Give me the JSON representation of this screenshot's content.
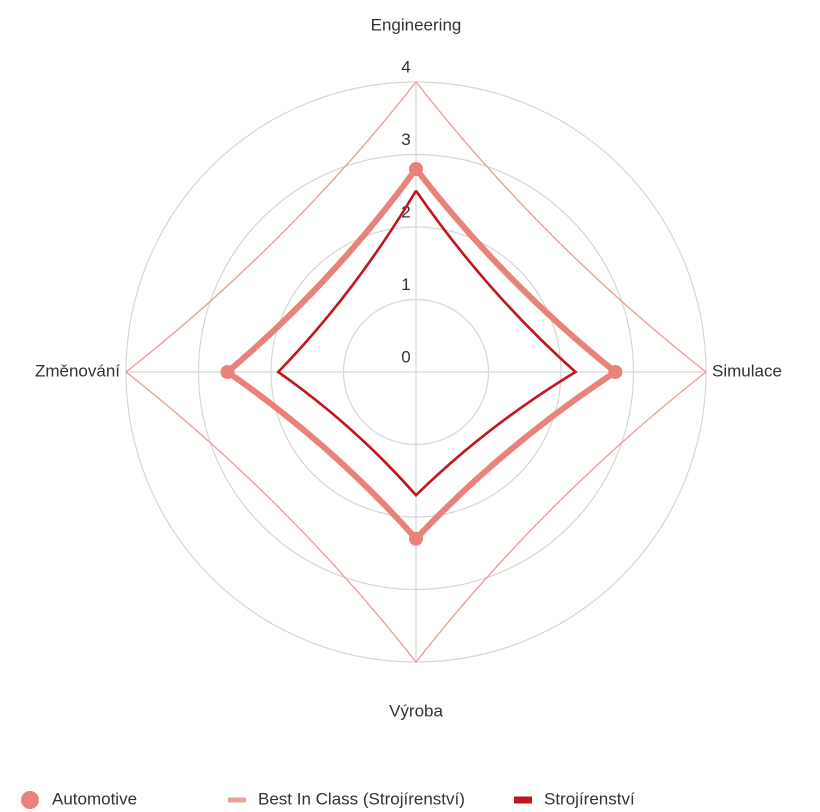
{
  "chart_data": {
    "type": "radar",
    "categories": [
      "Engineering",
      "Simulace",
      "Výroba",
      "Změnování"
    ],
    "series": [
      {
        "name": "Automotive",
        "color": "#e8827a",
        "values": [
          2.8,
          2.75,
          2.3,
          2.6
        ]
      },
      {
        "name": "Best In Class (Strojírenství)",
        "color": "#e5a596",
        "values": [
          4,
          4,
          4,
          4
        ]
      },
      {
        "name": "Strojírenství",
        "color": "#c0161c",
        "values": [
          2.5,
          2.2,
          1.7,
          1.9
        ]
      }
    ],
    "ylim": [
      0,
      4
    ],
    "yticks": [
      0,
      1,
      2,
      3,
      4
    ],
    "grid": true
  }
}
